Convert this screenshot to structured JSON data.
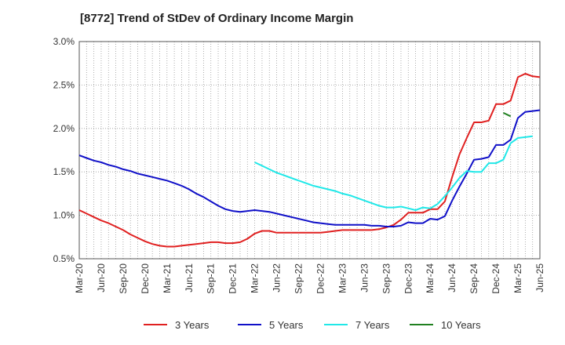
{
  "chart_data": {
    "type": "line",
    "title": "[8772]  Trend of StDev of Ordinary Income Margin",
    "xlabel": "",
    "ylabel": "",
    "x_range": [
      "2020-03",
      "2025-06"
    ],
    "ylim": [
      0.5,
      3.0
    ],
    "y_ticks": [
      0.5,
      1.0,
      1.5,
      2.0,
      2.5,
      3.0
    ],
    "y_tick_labels": [
      "0.5%",
      "1.0%",
      "1.5%",
      "2.0%",
      "2.5%",
      "3.0%"
    ],
    "x_tick_labels": [
      "Mar-20",
      "Jun-20",
      "Sep-20",
      "Dec-20",
      "Mar-21",
      "Jun-21",
      "Sep-21",
      "Dec-21",
      "Mar-22",
      "Jun-22",
      "Sep-22",
      "Dec-22",
      "Mar-23",
      "Jun-23",
      "Sep-23",
      "Dec-23",
      "Mar-24",
      "Jun-24",
      "Sep-24",
      "Dec-24",
      "Mar-25",
      "Jun-25"
    ],
    "grid": true,
    "legend_position": "bottom",
    "series": [
      {
        "name": "3 Years",
        "color": "#e02020",
        "start": "2020-03",
        "values": [
          1.06,
          1.02,
          0.98,
          0.94,
          0.91,
          0.87,
          0.83,
          0.78,
          0.74,
          0.7,
          0.67,
          0.65,
          0.64,
          0.64,
          0.65,
          0.66,
          0.67,
          0.68,
          0.69,
          0.69,
          0.68,
          0.68,
          0.69,
          0.73,
          0.79,
          0.82,
          0.82,
          0.8,
          0.8,
          0.8,
          0.8,
          0.8,
          0.8,
          0.8,
          0.81,
          0.82,
          0.83,
          0.83,
          0.83,
          0.83,
          0.83,
          0.84,
          0.86,
          0.89,
          0.95,
          1.03,
          1.03,
          1.03,
          1.07,
          1.07,
          1.16,
          1.44,
          1.7,
          1.89,
          2.07,
          2.07,
          2.09,
          2.28,
          2.28,
          2.32,
          2.59,
          2.63,
          2.6,
          2.59
        ]
      },
      {
        "name": "5 Years",
        "color": "#1010c8",
        "start": "2020-03",
        "values": [
          1.69,
          1.66,
          1.63,
          1.61,
          1.58,
          1.56,
          1.53,
          1.51,
          1.48,
          1.46,
          1.44,
          1.42,
          1.4,
          1.37,
          1.34,
          1.3,
          1.25,
          1.21,
          1.16,
          1.11,
          1.07,
          1.05,
          1.04,
          1.05,
          1.06,
          1.05,
          1.04,
          1.02,
          1.0,
          0.98,
          0.96,
          0.94,
          0.92,
          0.91,
          0.9,
          0.89,
          0.89,
          0.89,
          0.89,
          0.89,
          0.88,
          0.88,
          0.87,
          0.87,
          0.88,
          0.92,
          0.91,
          0.91,
          0.96,
          0.95,
          0.99,
          1.17,
          1.33,
          1.48,
          1.64,
          1.65,
          1.67,
          1.81,
          1.81,
          1.87,
          2.12,
          2.19,
          2.2,
          2.21
        ]
      },
      {
        "name": "7 Years",
        "color": "#20e8e8",
        "start": "2022-03",
        "values": [
          1.61,
          1.57,
          1.53,
          1.49,
          1.46,
          1.43,
          1.4,
          1.37,
          1.34,
          1.32,
          1.3,
          1.28,
          1.25,
          1.23,
          1.2,
          1.17,
          1.14,
          1.11,
          1.09,
          1.09,
          1.1,
          1.08,
          1.06,
          1.09,
          1.08,
          1.13,
          1.22,
          1.32,
          1.43,
          1.51,
          1.5,
          1.5,
          1.6,
          1.6,
          1.64,
          1.83,
          1.89,
          1.9,
          1.91
        ]
      },
      {
        "name": "10 Years",
        "color": "#208020",
        "start": "2025-01",
        "values": [
          2.18,
          2.14
        ]
      }
    ]
  }
}
